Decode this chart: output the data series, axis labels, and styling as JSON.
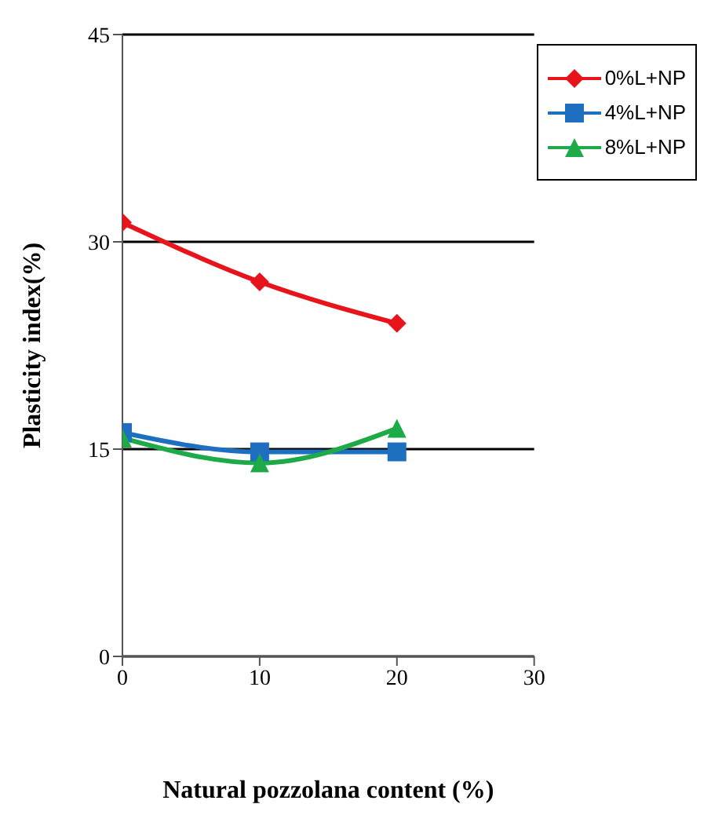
{
  "chart_data": {
    "type": "line",
    "xlabel": "Natural pozzolana content  (%)",
    "ylabel": "Plasticity index(%)",
    "x": [
      0,
      10,
      20
    ],
    "series": [
      {
        "name": "0%L+NP",
        "color": "#e8141c",
        "marker": "diamond",
        "values": [
          31.4,
          27.1,
          24.1
        ]
      },
      {
        "name": "4%L+NP",
        "color": "#1f6fc0",
        "marker": "square",
        "values": [
          16.2,
          14.8,
          14.8
        ]
      },
      {
        "name": "8%L+NP",
        "color": "#1faa4a",
        "marker": "triangle",
        "values": [
          15.8,
          14.0,
          16.5
        ]
      }
    ],
    "xlim": [
      0,
      30
    ],
    "xticks": [
      0,
      10,
      20,
      30
    ],
    "ylim": [
      0,
      45
    ],
    "yticks": [
      0,
      15,
      30,
      45
    ],
    "grid": "y",
    "legend": "top right"
  }
}
